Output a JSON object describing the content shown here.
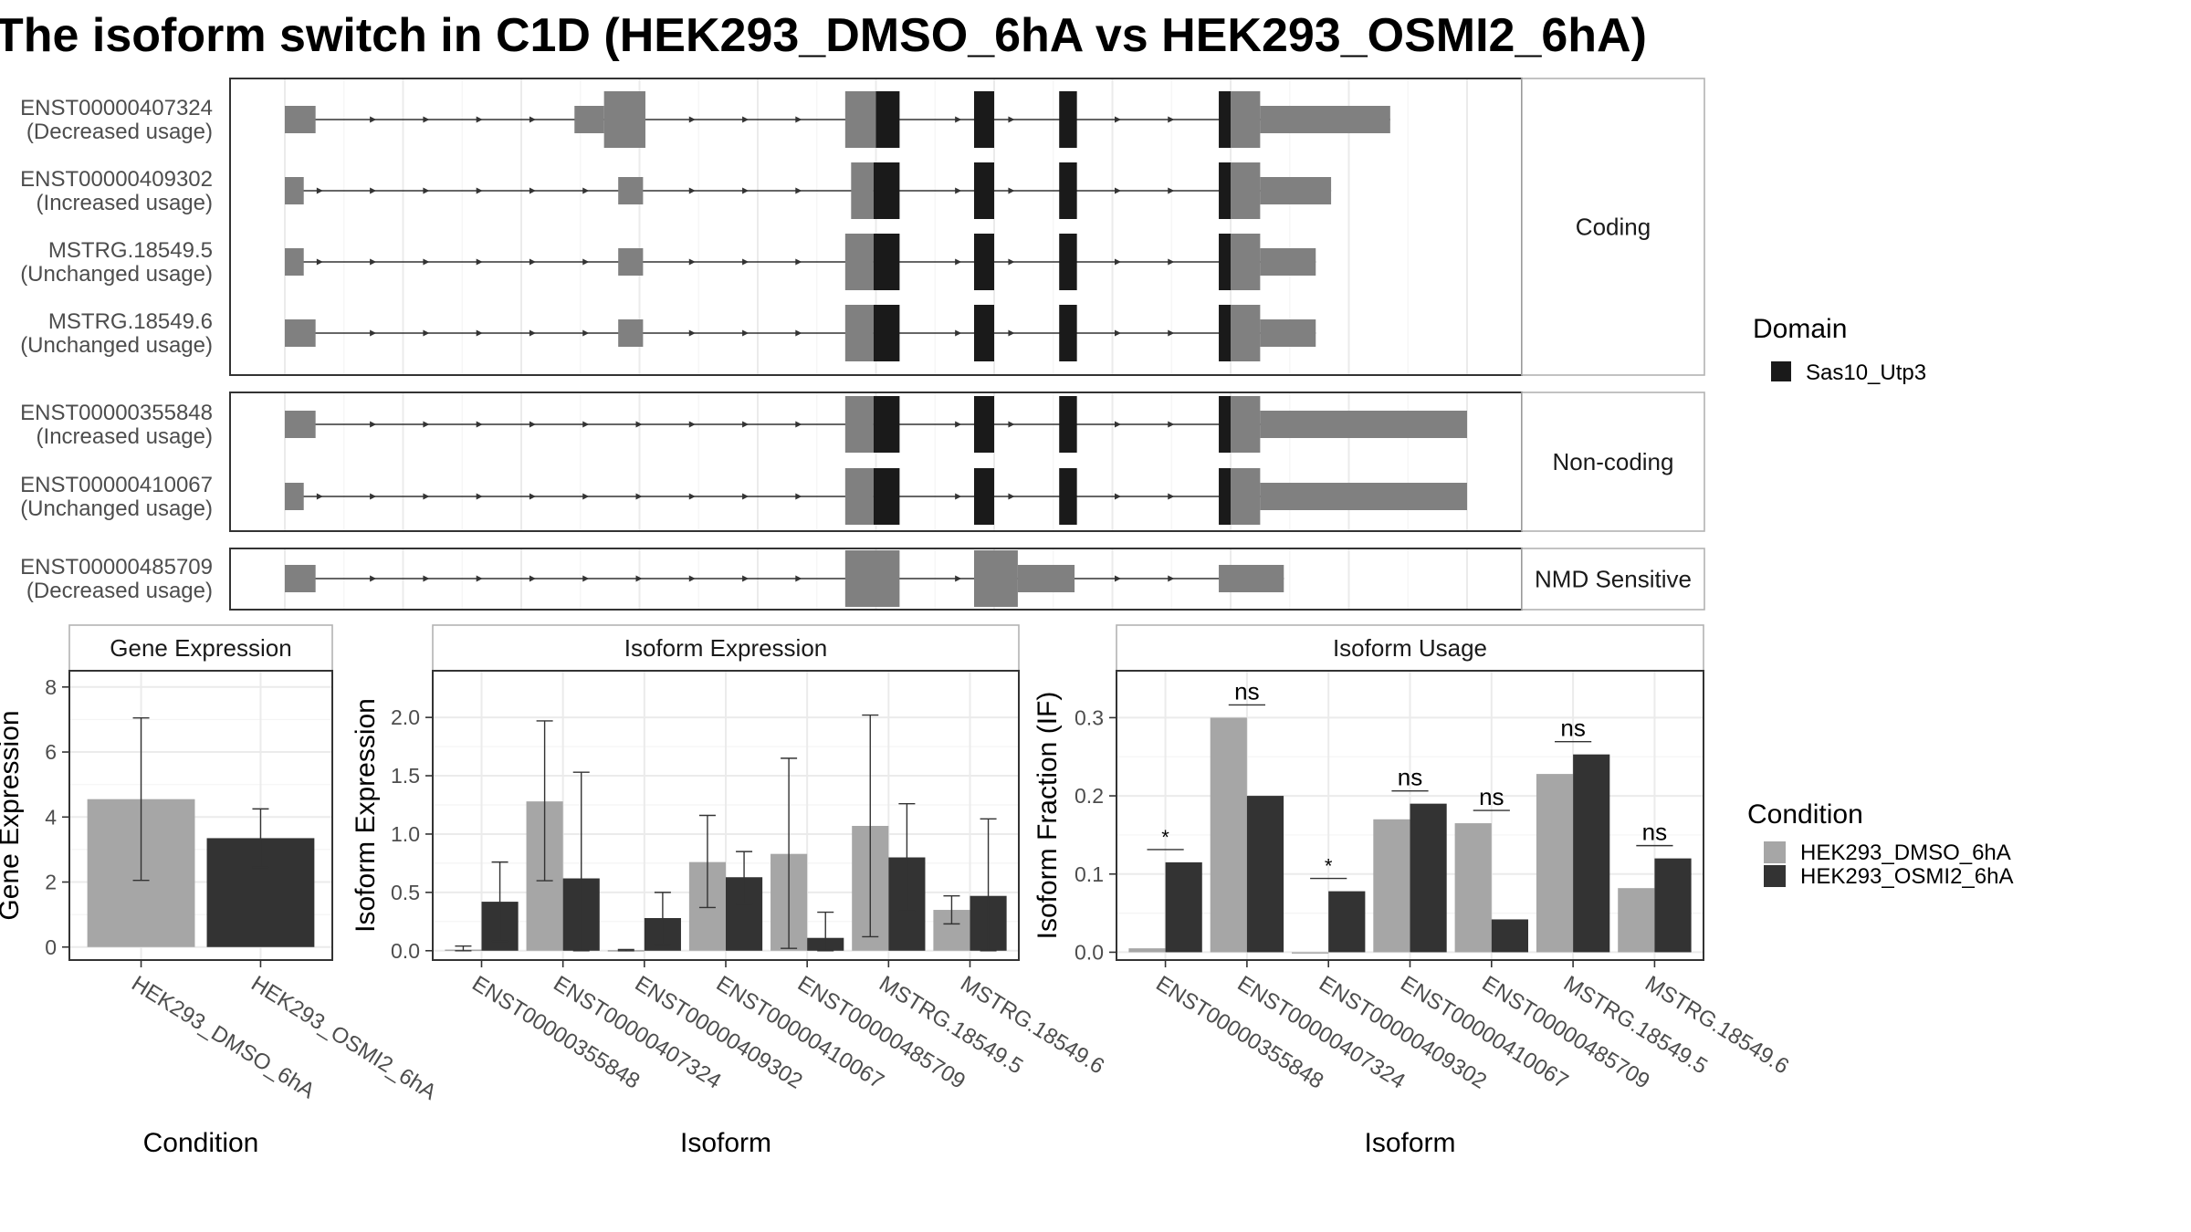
{
  "page": {
    "title": "The isoform switch in C1D (HEK293_DMSO_6hA vs HEK293_OSMI2_6hA)"
  },
  "colors": {
    "dmso": "#a6a6a6",
    "osmi": "#333333",
    "exon": "#808080",
    "domain": "#1a1a1a",
    "grid": "#ebebeb",
    "panel_border": "#333333",
    "strip_border": "#b3b3b3"
  },
  "structure": {
    "coord_range": [
      0,
      100
    ],
    "groups": [
      {
        "label": "Coding",
        "transcripts": [
          {
            "name": "ENST00000407324",
            "status": "(Decreased usage)",
            "exons": [
              [
                0,
                2.6,
                "u"
              ],
              [
                24.5,
                27,
                "u"
              ],
              [
                27,
                30.5,
                "c"
              ],
              [
                47.4,
                50,
                "c"
              ],
              [
                50,
                52,
                "d"
              ],
              [
                58.3,
                60,
                "d"
              ],
              [
                65.5,
                67,
                "d"
              ],
              [
                79,
                80,
                "d"
              ],
              [
                80,
                82.5,
                "c"
              ],
              [
                82.5,
                93.5,
                "u"
              ]
            ]
          },
          {
            "name": "ENST00000409302",
            "status": "(Increased usage)",
            "exons": [
              [
                0,
                1.6,
                "u"
              ],
              [
                28.2,
                30.3,
                "u"
              ],
              [
                47.9,
                49.8,
                "c"
              ],
              [
                49.8,
                52,
                "d"
              ],
              [
                58.3,
                60,
                "d"
              ],
              [
                65.5,
                67,
                "d"
              ],
              [
                79,
                80,
                "d"
              ],
              [
                80,
                82.5,
                "c"
              ],
              [
                82.5,
                88.5,
                "u"
              ]
            ]
          },
          {
            "name": "MSTRG.18549.5",
            "status": "(Unchanged usage)",
            "exons": [
              [
                0,
                1.6,
                "u"
              ],
              [
                28.2,
                30.3,
                "u"
              ],
              [
                47.4,
                49.8,
                "c"
              ],
              [
                49.8,
                52,
                "d"
              ],
              [
                58.3,
                60,
                "d"
              ],
              [
                65.5,
                67,
                "d"
              ],
              [
                79,
                80,
                "d"
              ],
              [
                80,
                82.5,
                "c"
              ],
              [
                82.5,
                87.2,
                "u"
              ]
            ]
          },
          {
            "name": "MSTRG.18549.6",
            "status": "(Unchanged usage)",
            "exons": [
              [
                0,
                2.6,
                "u"
              ],
              [
                28.2,
                30.3,
                "u"
              ],
              [
                47.4,
                49.8,
                "c"
              ],
              [
                49.8,
                52,
                "d"
              ],
              [
                58.3,
                60,
                "d"
              ],
              [
                65.5,
                67,
                "d"
              ],
              [
                79,
                80,
                "d"
              ],
              [
                80,
                82.5,
                "c"
              ],
              [
                82.5,
                87.2,
                "u"
              ]
            ]
          }
        ]
      },
      {
        "label": "Non-coding",
        "transcripts": [
          {
            "name": "ENST00000355848",
            "status": "(Increased usage)",
            "exons": [
              [
                0,
                2.6,
                "u"
              ],
              [
                47.4,
                49.8,
                "c"
              ],
              [
                49.8,
                52,
                "d"
              ],
              [
                58.3,
                60,
                "d"
              ],
              [
                65.5,
                67,
                "d"
              ],
              [
                79,
                80,
                "d"
              ],
              [
                80,
                82.5,
                "c"
              ],
              [
                82.5,
                100,
                "u"
              ]
            ]
          },
          {
            "name": "ENST00000410067",
            "status": "(Unchanged usage)",
            "exons": [
              [
                0,
                1.6,
                "u"
              ],
              [
                47.4,
                49.8,
                "c"
              ],
              [
                49.8,
                52,
                "d"
              ],
              [
                58.3,
                60,
                "d"
              ],
              [
                65.5,
                67,
                "d"
              ],
              [
                79,
                80,
                "d"
              ],
              [
                80,
                82.5,
                "c"
              ],
              [
                82.5,
                100,
                "u"
              ]
            ]
          }
        ]
      },
      {
        "label": "NMD Sensitive",
        "transcripts": [
          {
            "name": "ENST00000485709",
            "status": "(Decreased usage)",
            "exons": [
              [
                0,
                2.6,
                "u"
              ],
              [
                47.4,
                52,
                "c"
              ],
              [
                58.3,
                62,
                "c"
              ],
              [
                62,
                66.8,
                "u"
              ],
              [
                79,
                84.5,
                "u"
              ]
            ]
          }
        ]
      }
    ]
  },
  "domain_legend": {
    "title": "Domain",
    "entries": [
      {
        "label": "Sas10_Utp3",
        "color": "#1a1a1a"
      }
    ]
  },
  "condition_legend": {
    "title": "Condition",
    "entries": [
      {
        "label": "HEK293_DMSO_6hA",
        "color": "#a6a6a6"
      },
      {
        "label": "HEK293_OSMI2_6hA",
        "color": "#333333"
      }
    ]
  },
  "chart_data": [
    {
      "type": "bar",
      "title": "Gene Expression",
      "xlabel": "Condition",
      "ylabel": "Gene Expression",
      "ylim": [
        -0.4,
        8.5
      ],
      "yticks": [
        0,
        2,
        4,
        6,
        8
      ],
      "grid": true,
      "categories": [
        "HEK293_DMSO_6hA",
        "HEK293_OSMI2_6hA"
      ],
      "values": [
        4.55,
        3.35
      ],
      "error_low": [
        2.05,
        2.45
      ],
      "error_high": [
        7.05,
        4.25
      ]
    },
    {
      "type": "bar",
      "title": "Isoform Expression",
      "xlabel": "Isoform",
      "ylabel": "Isoform Expression",
      "ylim": [
        -0.08,
        2.4
      ],
      "yticks": [
        0.0,
        0.5,
        1.0,
        1.5,
        2.0
      ],
      "grid": true,
      "categories": [
        "ENST00000355848",
        "ENST00000407324",
        "ENST00000409302",
        "ENST00000410067",
        "ENST00000485709",
        "MSTRG.18549.5",
        "MSTRG.18549.6"
      ],
      "series": [
        {
          "name": "HEK293_DMSO_6hA",
          "values": [
            0.01,
            1.28,
            0.005,
            0.76,
            0.83,
            1.07,
            0.35
          ],
          "error_low": [
            0.0,
            0.6,
            0.0,
            0.37,
            0.02,
            0.12,
            0.23
          ],
          "error_high": [
            0.04,
            1.97,
            0.01,
            1.16,
            1.65,
            2.02,
            0.47
          ]
        },
        {
          "name": "HEK293_OSMI2_6hA",
          "values": [
            0.42,
            0.62,
            0.28,
            0.63,
            0.11,
            0.8,
            0.47
          ],
          "error_low": [
            0.08,
            0.0,
            0.05,
            0.4,
            0.0,
            0.34,
            0.0
          ],
          "error_high": [
            0.76,
            1.53,
            0.5,
            0.85,
            0.33,
            1.26,
            1.13
          ]
        }
      ]
    },
    {
      "type": "bar",
      "title": "Isoform Usage",
      "xlabel": "Isoform",
      "ylabel": "Isoform Fraction (IF)",
      "ylim": [
        -0.01,
        0.36
      ],
      "yticks": [
        0.0,
        0.1,
        0.2,
        0.3
      ],
      "grid": true,
      "categories": [
        "ENST00000355848",
        "ENST00000407324",
        "ENST00000409302",
        "ENST00000410067",
        "ENST00000485709",
        "MSTRG.18549.5",
        "MSTRG.18549.6"
      ],
      "series": [
        {
          "name": "HEK293_DMSO_6hA",
          "values": [
            0.005,
            0.3,
            0.0,
            0.17,
            0.165,
            0.228,
            0.082
          ]
        },
        {
          "name": "HEK293_OSMI2_6hA",
          "values": [
            0.115,
            0.2,
            0.078,
            0.19,
            0.042,
            0.253,
            0.12
          ]
        }
      ],
      "significance": [
        "*",
        "ns",
        "*",
        "ns",
        "ns",
        "ns",
        "ns"
      ]
    }
  ]
}
